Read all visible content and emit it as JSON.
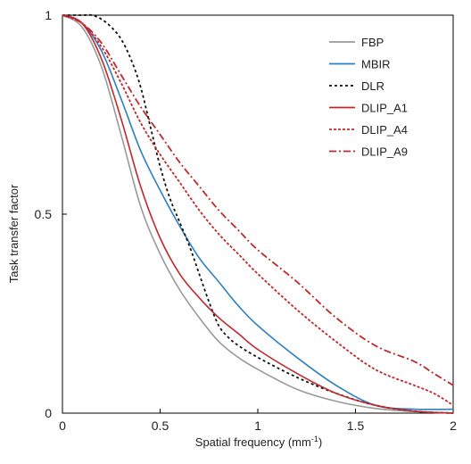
{
  "chart_data": {
    "type": "line",
    "xlabel": "Spatial frequency (mm",
    "xlabel_sup": "-1",
    "xlabel_end": ")",
    "ylabel": "Task transfer factor",
    "xlim": [
      0,
      2
    ],
    "ylim": [
      0,
      1.0
    ],
    "x_ticks": [
      0,
      0.5,
      1,
      1.5,
      2
    ],
    "x_tick_labels": [
      "0",
      "0.5",
      "1",
      "1.5",
      "2"
    ],
    "y_ticks": [
      0,
      0.5,
      1
    ],
    "y_tick_labels": [
      "0",
      "0.5",
      "1"
    ],
    "grid": false,
    "legend_position": "top-right",
    "series": [
      {
        "name": "FBP",
        "color": "#999999",
        "dash": "solid",
        "x": [
          0,
          0.1,
          0.2,
          0.3,
          0.4,
          0.5,
          0.6,
          0.7,
          0.8,
          0.9,
          1.0,
          1.2,
          1.4,
          1.6,
          1.8,
          2.0
        ],
        "y": [
          1.0,
          0.97,
          0.87,
          0.7,
          0.52,
          0.4,
          0.31,
          0.24,
          0.18,
          0.14,
          0.11,
          0.06,
          0.03,
          0.012,
          0.004,
          0.0
        ]
      },
      {
        "name": "MBIR",
        "color": "#2e7fc1",
        "dash": "solid",
        "x": [
          0,
          0.1,
          0.2,
          0.3,
          0.4,
          0.5,
          0.6,
          0.7,
          0.8,
          0.9,
          1.0,
          1.2,
          1.4,
          1.6,
          1.8,
          2.0
        ],
        "y": [
          1.0,
          0.98,
          0.91,
          0.79,
          0.66,
          0.56,
          0.47,
          0.39,
          0.33,
          0.27,
          0.22,
          0.14,
          0.07,
          0.02,
          0.01,
          0.01
        ]
      },
      {
        "name": "DLR",
        "color": "#111111",
        "dash": "3,3",
        "x": [
          0,
          0.1,
          0.15,
          0.2,
          0.25,
          0.3,
          0.35,
          0.4,
          0.45,
          0.5,
          0.55,
          0.6,
          0.65,
          0.7,
          0.75,
          0.8,
          0.85,
          0.9,
          1.0,
          1.2,
          1.4,
          1.6,
          1.8,
          2.0
        ],
        "y": [
          1.0,
          1.0,
          1.0,
          0.99,
          0.97,
          0.94,
          0.89,
          0.82,
          0.72,
          0.62,
          0.54,
          0.48,
          0.42,
          0.35,
          0.28,
          0.22,
          0.19,
          0.17,
          0.14,
          0.09,
          0.05,
          0.02,
          0.005,
          0.0
        ]
      },
      {
        "name": "DLIP_A1",
        "color": "#c0282d",
        "dash": "solid",
        "x": [
          0,
          0.1,
          0.2,
          0.3,
          0.4,
          0.5,
          0.6,
          0.7,
          0.8,
          0.9,
          1.0,
          1.2,
          1.4,
          1.6,
          1.8,
          2.0
        ],
        "y": [
          1.0,
          0.98,
          0.89,
          0.74,
          0.57,
          0.44,
          0.35,
          0.29,
          0.24,
          0.2,
          0.16,
          0.1,
          0.05,
          0.02,
          0.005,
          0.0
        ]
      },
      {
        "name": "DLIP_A4",
        "color": "#c0282d",
        "dash": "3,2",
        "x": [
          0,
          0.1,
          0.2,
          0.3,
          0.4,
          0.5,
          0.6,
          0.7,
          0.8,
          0.9,
          1.0,
          1.2,
          1.4,
          1.6,
          1.8,
          1.9,
          2.0
        ],
        "y": [
          1.0,
          0.98,
          0.92,
          0.83,
          0.73,
          0.65,
          0.58,
          0.51,
          0.45,
          0.4,
          0.35,
          0.26,
          0.18,
          0.11,
          0.07,
          0.05,
          0.02
        ]
      },
      {
        "name": "DLIP_A9",
        "color": "#c0282d",
        "dash": "8,3,2,3",
        "x": [
          0,
          0.1,
          0.2,
          0.3,
          0.4,
          0.5,
          0.6,
          0.7,
          0.8,
          0.9,
          1.0,
          1.2,
          1.4,
          1.6,
          1.8,
          1.9,
          2.0
        ],
        "y": [
          1.0,
          0.98,
          0.93,
          0.85,
          0.77,
          0.7,
          0.63,
          0.57,
          0.51,
          0.46,
          0.41,
          0.33,
          0.24,
          0.17,
          0.13,
          0.1,
          0.07
        ]
      }
    ]
  }
}
